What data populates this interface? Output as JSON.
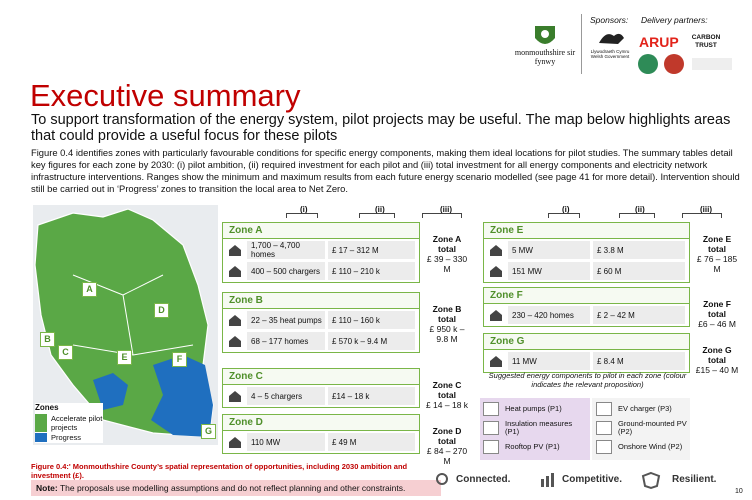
{
  "header": {
    "council": "monmouthshire sir fynwy",
    "sponsors_label": "Sponsors:",
    "sponsor": "Llywodraeth Cymru Welsh Government",
    "partners_label": "Delivery partners:",
    "partners": [
      "ARUP",
      "CARBON TRUST"
    ]
  },
  "title": "Executive summary",
  "subtitle": "To support transformation of the energy system, pilot projects may be useful. The map below highlights areas that could provide a useful focus for these pilots",
  "body": "Figure 0.4 identifies zones with particularly favourable conditions for specific energy components, making them ideal locations for pilot studies.  The summary tables detail key figures for each zone by 2030: (i) pilot ambition, (ii) required investment for each pilot and (iii) total investment for all energy components and electricity network infrastructure interventions. Ranges show the minimum and maximum results from each future energy scenario modelled (see page 41 for more detail). Intervention should still be carried out in ‘Progress’ zones to transition the local area to Net Zero.",
  "map": {
    "zone_labels": [
      "A",
      "B",
      "C",
      "D",
      "E",
      "F",
      "G"
    ],
    "legend_title": "Zones",
    "legend": [
      "Accelerate pilot projects",
      "Progress"
    ]
  },
  "column_headers": [
    "(i)",
    "(ii)",
    "(iii)"
  ],
  "zones": [
    {
      "name": "Zone A",
      "total_label": "Zone A total",
      "total": "£ 39 – 330 M",
      "rows": [
        {
          "i": "1,700 – 4,700 homes",
          "ii": "£ 17 – 312 M"
        },
        {
          "i": "400 – 500 chargers",
          "ii": "£ 110 – 210 k"
        }
      ]
    },
    {
      "name": "Zone B",
      "total_label": "Zone B total",
      "total": "£ 950 k – 9.8 M",
      "rows": [
        {
          "i": "22 – 35 heat pumps",
          "ii": "£ 110 – 160 k"
        },
        {
          "i": "68 – 177 homes",
          "ii": "£ 570 k – 9.4 M"
        }
      ]
    },
    {
      "name": "Zone C",
      "total_label": "Zone C total",
      "total": "£ 14 – 18 k",
      "rows": [
        {
          "i": "4 – 5 chargers",
          "ii": "£14 – 18 k"
        }
      ]
    },
    {
      "name": "Zone D",
      "total_label": "Zone D total",
      "total": "£ 84 – 270 M",
      "rows": [
        {
          "i": "110 MW",
          "ii": "£ 49 M"
        }
      ]
    },
    {
      "name": "Zone E",
      "total_label": "Zone E total",
      "total": "£ 76 – 185 M",
      "rows": [
        {
          "i": "5 MW",
          "ii": "£ 3.8 M"
        },
        {
          "i": "151 MW",
          "ii": "£ 60 M"
        }
      ]
    },
    {
      "name": "Zone F",
      "total_label": "Zone F total",
      "total": "£6 – 46 M",
      "rows": [
        {
          "i": "230 – 420 homes",
          "ii": "£ 2 – 42 M"
        }
      ]
    },
    {
      "name": "Zone G",
      "total_label": "Zone G total",
      "total": "£15 – 40 M",
      "rows": [
        {
          "i": "11 MW",
          "ii": "£ 8.4 M"
        }
      ]
    }
  ],
  "key": {
    "caption": "Suggested energy components to pilot in each zone (colour indicates the relevant proposition)",
    "items": [
      "Heat pumps (P1)",
      "Insulation measures (P1)",
      "Rooftop PV (P1)",
      "EV charger (P3)",
      "Ground-mounted PV (P2)",
      "Onshore Wind (P2)"
    ]
  },
  "figure_caption": "Figure 0.4:' Monmouthshire County’s spatial representation of opportunities, including 2030 ambition and investment (£).",
  "note": {
    "label": "Note:",
    "text": "The proposals use modelling assumptions and do not reflect planning and other constraints."
  },
  "footer": {
    "values": [
      "Connected.",
      "Competitive.",
      "Resilient."
    ],
    "page": "10"
  }
}
